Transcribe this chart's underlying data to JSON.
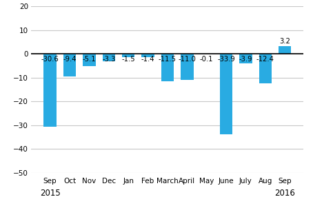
{
  "categories": [
    "Sep",
    "Oct",
    "Nov",
    "Dec",
    "Jan",
    "Feb",
    "March",
    "April",
    "May",
    "June",
    "July",
    "Aug",
    "Sep"
  ],
  "values": [
    -30.6,
    -9.4,
    -5.1,
    -3.3,
    -1.5,
    -1.4,
    -11.5,
    -11.0,
    -0.1,
    -33.9,
    -3.9,
    -12.4,
    3.2
  ],
  "bar_color": "#29abe2",
  "year_label_indices": [
    0,
    12
  ],
  "year_labels": [
    "2015",
    "2016"
  ],
  "ylim": [
    -50,
    20
  ],
  "yticks": [
    -50,
    -40,
    -30,
    -20,
    -10,
    0,
    10,
    20
  ],
  "label_fontsize": 7.2,
  "tick_fontsize": 7.5,
  "year_fontsize": 8.5,
  "background_color": "#ffffff",
  "grid_color": "#c8c8c8",
  "bar_width": 0.65
}
